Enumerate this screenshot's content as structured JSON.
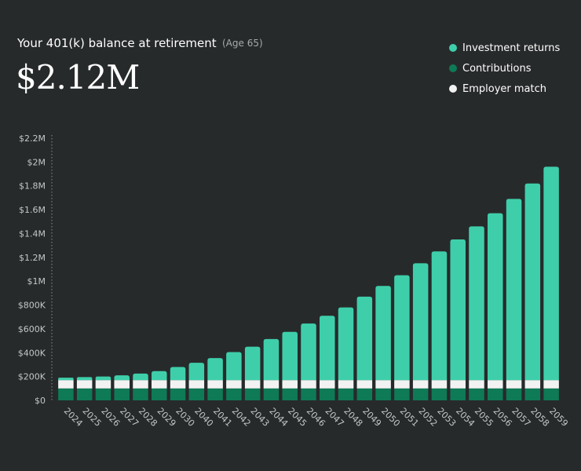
{
  "header": {
    "title": "Your 401(k) balance at retirement",
    "subtitle": "(Age 65)",
    "value": "$2.12M"
  },
  "colors": {
    "background": "#272a2b",
    "investment_returns": "#3ecfaa",
    "contributions": "#0e7a56",
    "employer_match": "#f2f2f2",
    "axis_text": "#c4c7c8"
  },
  "chart_data": {
    "type": "bar",
    "stacked": true,
    "categories": [
      "2024",
      "2025",
      "2026",
      "2027",
      "2028",
      "2029",
      "2030",
      "2040",
      "2041",
      "2042",
      "2043",
      "2044",
      "2045",
      "2046",
      "2047",
      "2048",
      "2049",
      "2050",
      "2051",
      "2052",
      "2053",
      "2054",
      "2055",
      "2056",
      "2057",
      "2058",
      "2059"
    ],
    "series": [
      {
        "name": "Contributions",
        "color": "#0e7a56",
        "values": [
          100000,
          100000,
          100000,
          100000,
          100000,
          100000,
          100000,
          100000,
          100000,
          100000,
          100000,
          100000,
          100000,
          100000,
          100000,
          100000,
          100000,
          100000,
          100000,
          100000,
          100000,
          100000,
          100000,
          100000,
          100000,
          100000,
          100000
        ]
      },
      {
        "name": "Employer match",
        "color": "#f2f2f2",
        "values": [
          70000,
          70000,
          70000,
          70000,
          70000,
          70000,
          70000,
          70000,
          70000,
          70000,
          70000,
          70000,
          70000,
          70000,
          70000,
          70000,
          70000,
          70000,
          70000,
          70000,
          70000,
          70000,
          70000,
          70000,
          70000,
          70000,
          70000
        ]
      },
      {
        "name": "Investment returns",
        "color": "#3ecfaa",
        "values": [
          20000,
          25000,
          30000,
          40000,
          55000,
          75000,
          110000,
          145000,
          185000,
          235000,
          280000,
          345000,
          405000,
          475000,
          540000,
          610000,
          700000,
          790000,
          880000,
          980000,
          1080000,
          1180000,
          1290000,
          1400000,
          1520000,
          1650000,
          1790000
        ]
      }
    ],
    "legend": [
      "Investment returns",
      "Contributions",
      "Employer match"
    ],
    "legend_position": "top-right",
    "ylim": [
      0,
      2200000
    ],
    "y_ticks": [
      {
        "value": 0,
        "label": "$0"
      },
      {
        "value": 200000,
        "label": "$200K"
      },
      {
        "value": 400000,
        "label": "$400K"
      },
      {
        "value": 600000,
        "label": "$600K"
      },
      {
        "value": 800000,
        "label": "$800K"
      },
      {
        "value": 1000000,
        "label": "$1M"
      },
      {
        "value": 1200000,
        "label": "$1.2M"
      },
      {
        "value": 1400000,
        "label": "$1.4M"
      },
      {
        "value": 1600000,
        "label": "$1.6M"
      },
      {
        "value": 1800000,
        "label": "$1.8M"
      },
      {
        "value": 2000000,
        "label": "$2M"
      },
      {
        "value": 2200000,
        "label": "$2.2M"
      }
    ],
    "grid": false
  }
}
